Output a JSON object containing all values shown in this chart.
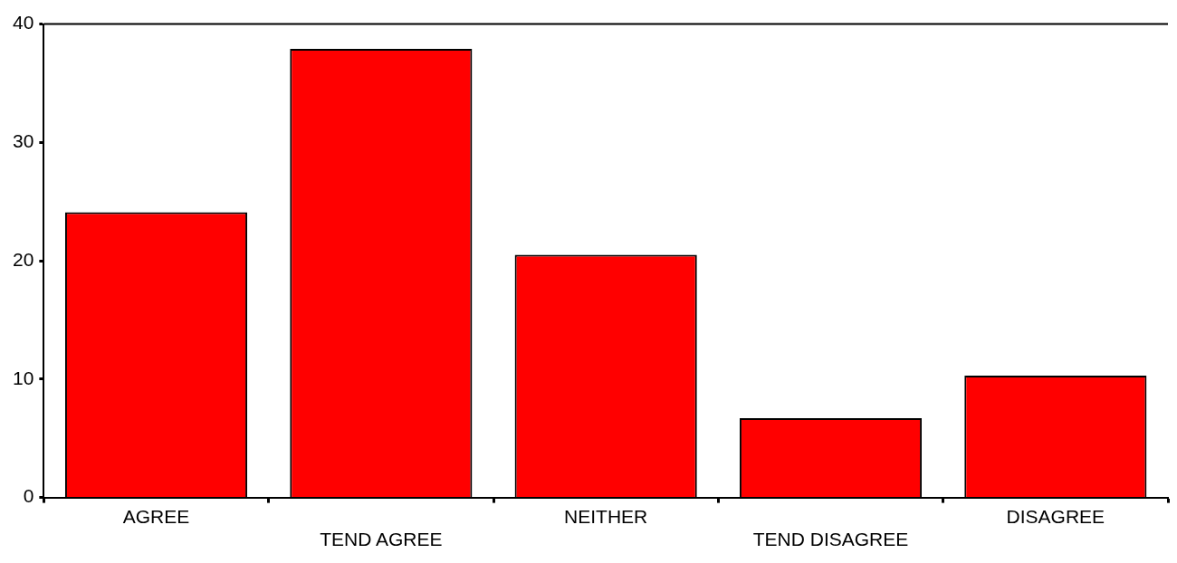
{
  "chart_data": {
    "type": "bar",
    "categories": [
      "AGREE",
      "TEND AGREE",
      "NEITHER",
      "TEND DISAGREE",
      "DISAGREE"
    ],
    "values": [
      24.1,
      37.9,
      20.5,
      6.7,
      10.3
    ],
    "color": "#ff0000",
    "ylim": [
      0,
      40
    ],
    "yticks": [
      0,
      10,
      20,
      30,
      40
    ],
    "grid": false,
    "legend": false
  }
}
